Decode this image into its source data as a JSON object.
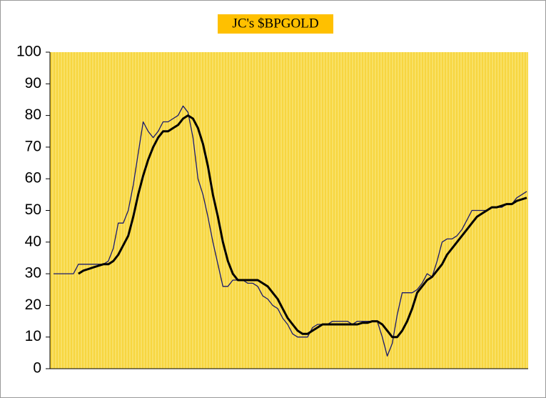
{
  "chart_data": {
    "type": "line",
    "title": "JC's $BPGOLD",
    "categories": [
      null,
      null,
      null,
      null,
      null,
      null,
      null,
      null,
      null,
      null,
      null,
      null,
      null,
      null,
      null,
      null,
      null,
      null,
      null,
      null,
      null,
      null,
      null,
      null,
      null,
      null,
      null,
      null,
      null,
      null,
      null,
      null,
      null,
      null,
      null,
      null,
      null,
      null,
      null,
      null,
      null,
      null,
      null,
      null,
      null,
      null,
      null,
      null,
      null,
      null,
      null,
      null,
      null,
      null,
      null,
      null,
      null,
      null,
      null,
      null,
      null,
      null,
      null,
      null,
      null,
      null,
      null,
      null,
      null,
      null,
      null,
      null,
      null,
      null,
      null,
      null,
      null,
      null,
      null,
      null,
      null,
      null,
      null,
      null,
      null,
      null,
      null,
      null,
      null,
      null,
      null,
      null,
      null,
      null,
      null,
      null
    ],
    "series": [
      {
        "color": "#1a1a6e",
        "values": [
          30,
          30,
          30,
          30,
          30,
          33,
          33,
          33,
          33,
          33,
          33,
          34,
          38,
          46,
          46,
          50,
          58,
          68,
          78,
          75,
          73,
          75,
          78,
          78,
          79,
          80,
          83,
          81,
          73,
          60,
          55,
          48,
          40,
          33,
          26,
          26,
          28,
          28,
          28,
          27,
          27,
          26,
          23,
          22,
          20,
          19,
          16,
          14,
          11,
          10,
          10,
          10,
          13,
          14,
          14,
          14,
          15,
          15,
          15,
          15,
          14,
          15,
          15,
          15,
          15,
          15,
          10,
          4,
          8,
          17,
          24,
          24,
          24,
          25,
          27,
          30,
          29,
          34,
          40,
          41,
          41,
          42,
          44,
          47,
          50,
          50,
          50,
          50,
          51,
          51,
          51,
          52,
          52,
          54,
          55,
          56
        ]
      },
      {
        "color": "#000000",
        "values": [
          null,
          null,
          null,
          null,
          null,
          30,
          31,
          31.5,
          32,
          32.5,
          33,
          33,
          34,
          36,
          39,
          42,
          48,
          55,
          61,
          66,
          70,
          73,
          75,
          75,
          76,
          77,
          79,
          80,
          79,
          76,
          71,
          64,
          55,
          48,
          40,
          34,
          30,
          28,
          28,
          28,
          28,
          28,
          27,
          26,
          24,
          22,
          19,
          16,
          14,
          12,
          11,
          11,
          12,
          13,
          14,
          14,
          14,
          14,
          14,
          14,
          14,
          14,
          14.5,
          14.5,
          15,
          15,
          14,
          12,
          10,
          10,
          12,
          15,
          19,
          24,
          26,
          28,
          29,
          31,
          33,
          36,
          38,
          40,
          42,
          44,
          46,
          48,
          49,
          50,
          51,
          51,
          51.5,
          52,
          52,
          53,
          53.5,
          54
        ]
      }
    ],
    "ylim": [
      0,
      100
    ],
    "yticks": [
      0,
      10,
      20,
      30,
      40,
      50,
      60,
      70,
      80,
      90,
      100
    ],
    "grid": true,
    "background": "#f7d640"
  }
}
